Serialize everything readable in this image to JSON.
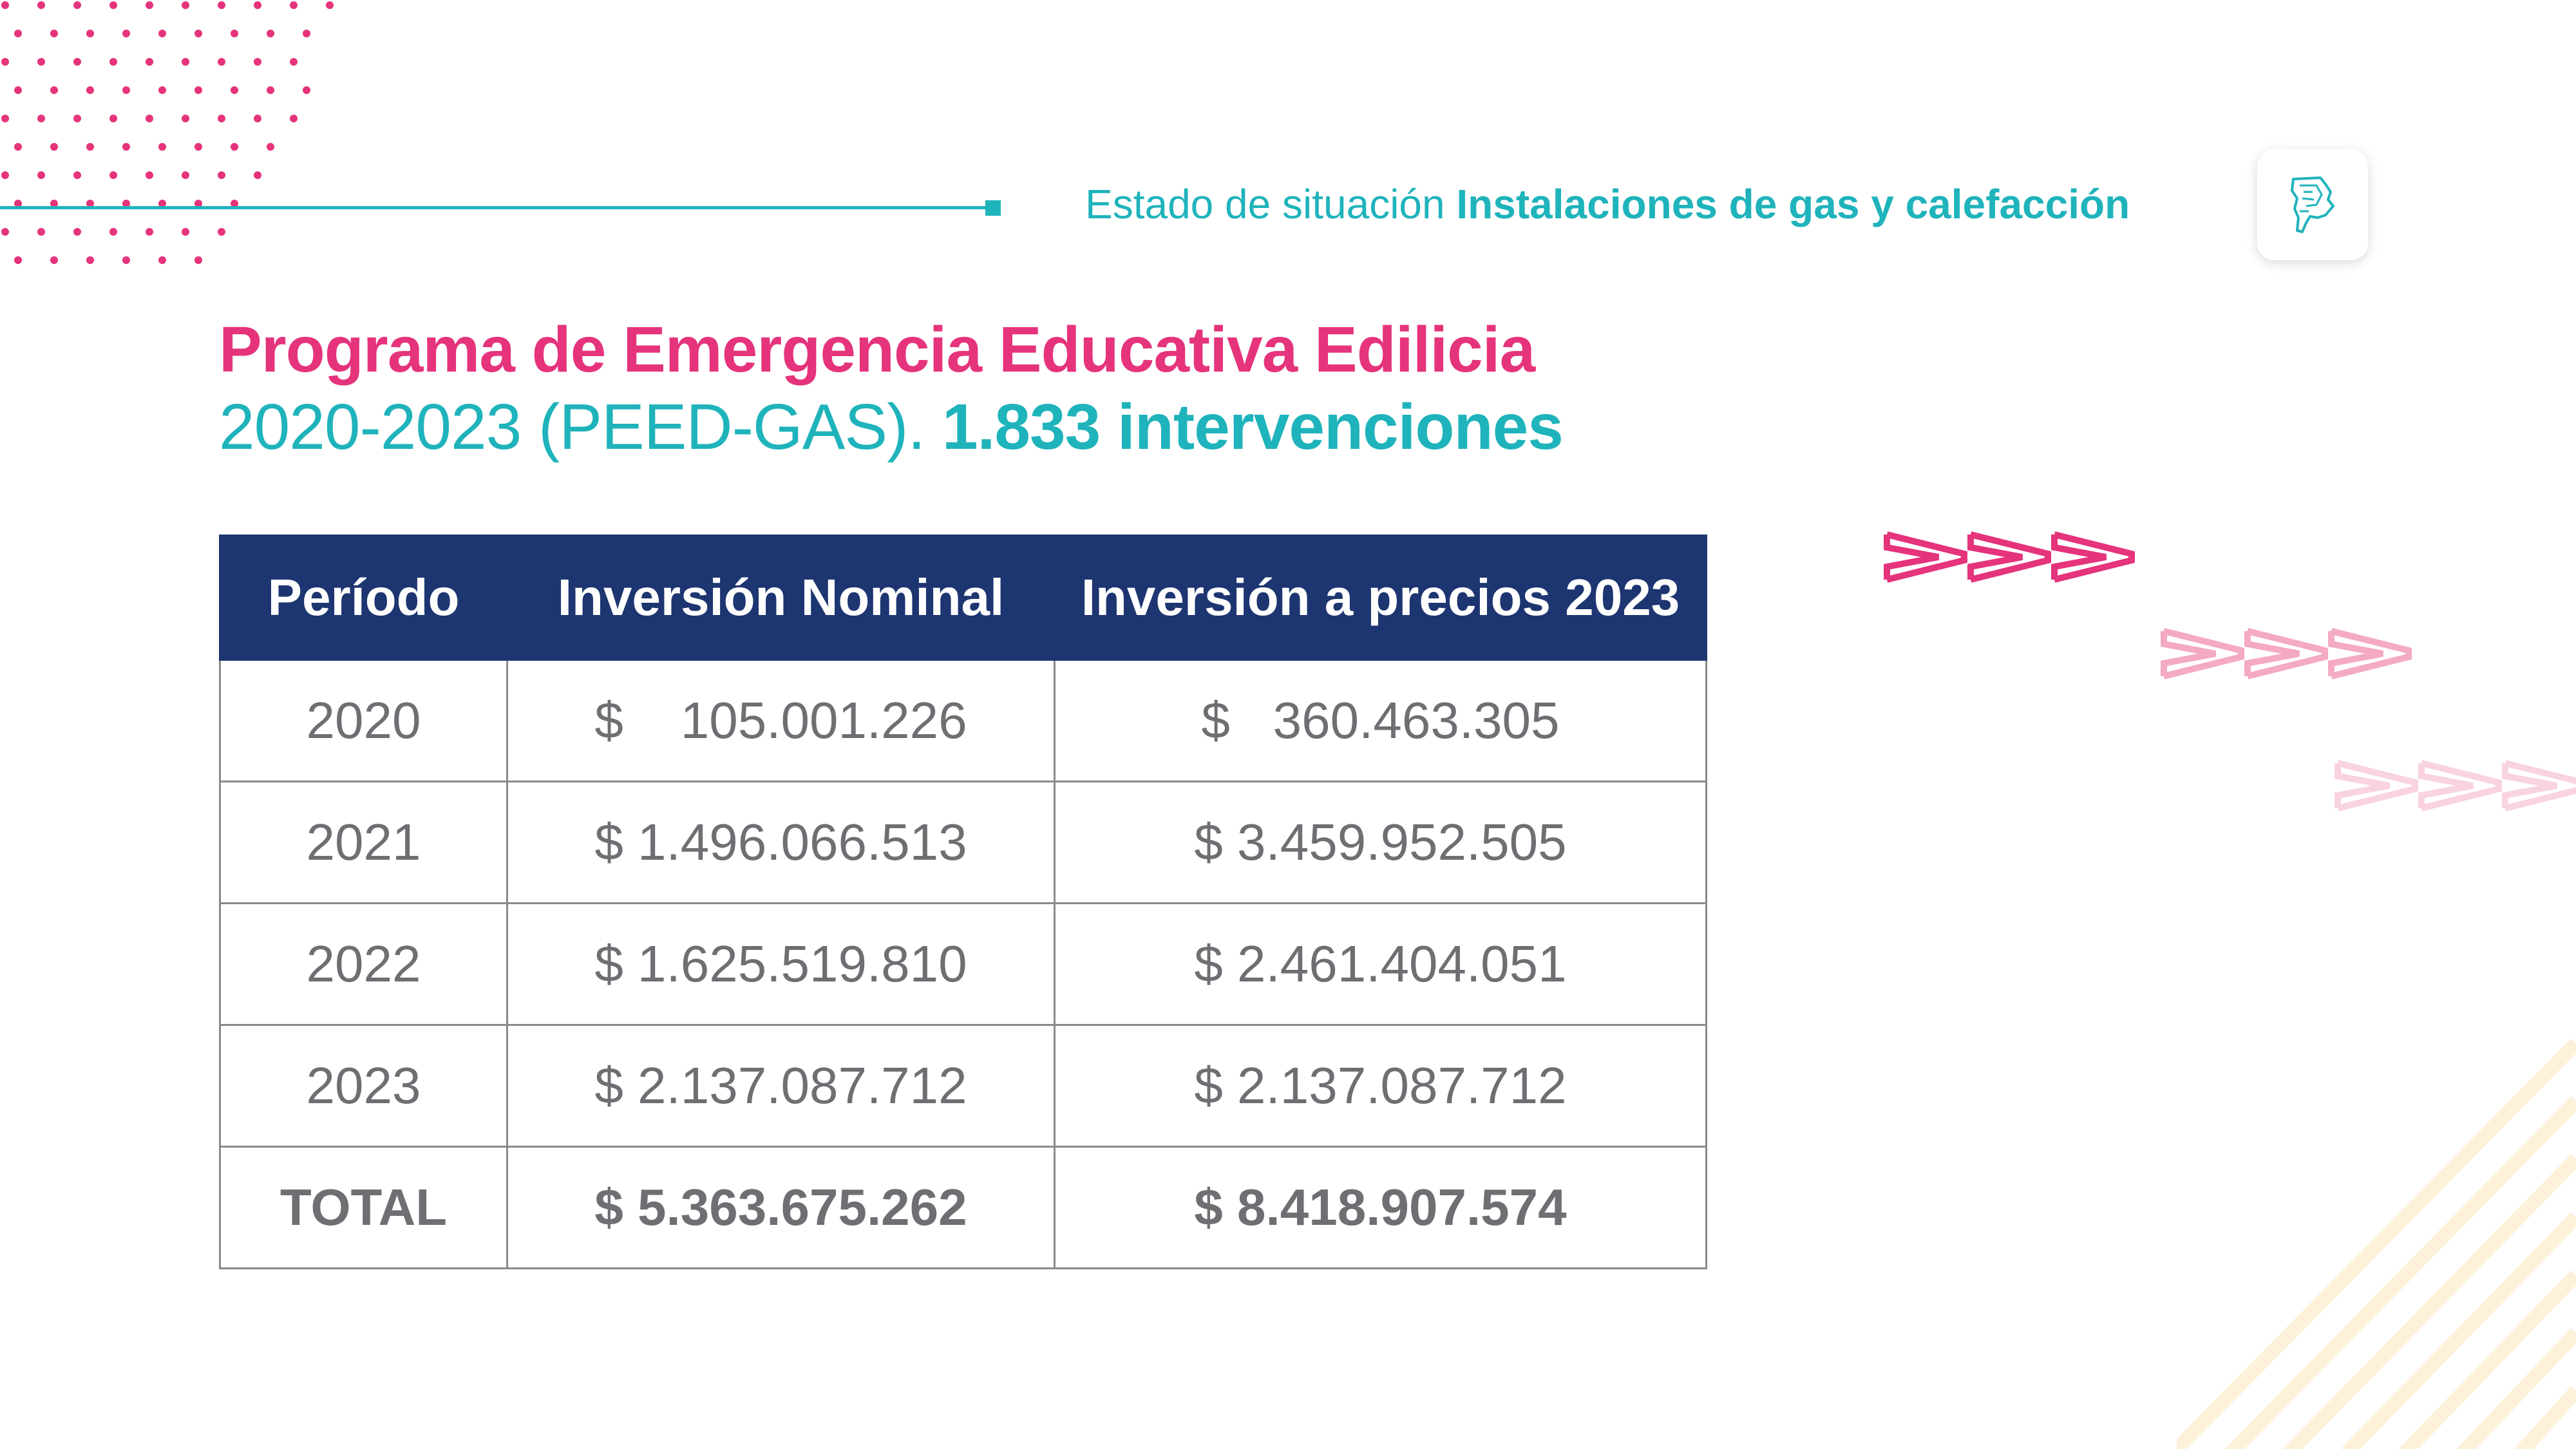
{
  "colors": {
    "pink": "#e5337c",
    "teal": "#1fb3bb",
    "navy": "#1d3570",
    "gray_text": "#6e6e73",
    "light_pink": "#f4a9c5",
    "stripes": "#fdf1d9"
  },
  "header": {
    "caption_regular": "Estado de situación",
    "caption_bold": "Instalaciones de gas y calefacción",
    "logo_icon": "province-map-icon"
  },
  "title": {
    "line1": "Programa de Emergencia Educativa Edilicia",
    "line2_regular": "2020-2023 (PEED-GAS).",
    "line2_bold": "1.833 intervenciones"
  },
  "table": {
    "headers": [
      "Período",
      "Inversión Nominal",
      "Inversión a precios 2023"
    ],
    "rows": [
      [
        "2020",
        "$    105.001.226",
        "$   360.463.305"
      ],
      [
        "2021",
        "$ 1.496.066.513",
        "$ 3.459.952.505"
      ],
      [
        "2022",
        "$ 1.625.519.810",
        "$ 2.461.404.051"
      ],
      [
        "2023",
        "$ 2.137.087.712",
        "$ 2.137.087.712"
      ]
    ],
    "total": [
      "TOTAL",
      "$ 5.363.675.262",
      "$ 8.418.907.574"
    ]
  }
}
